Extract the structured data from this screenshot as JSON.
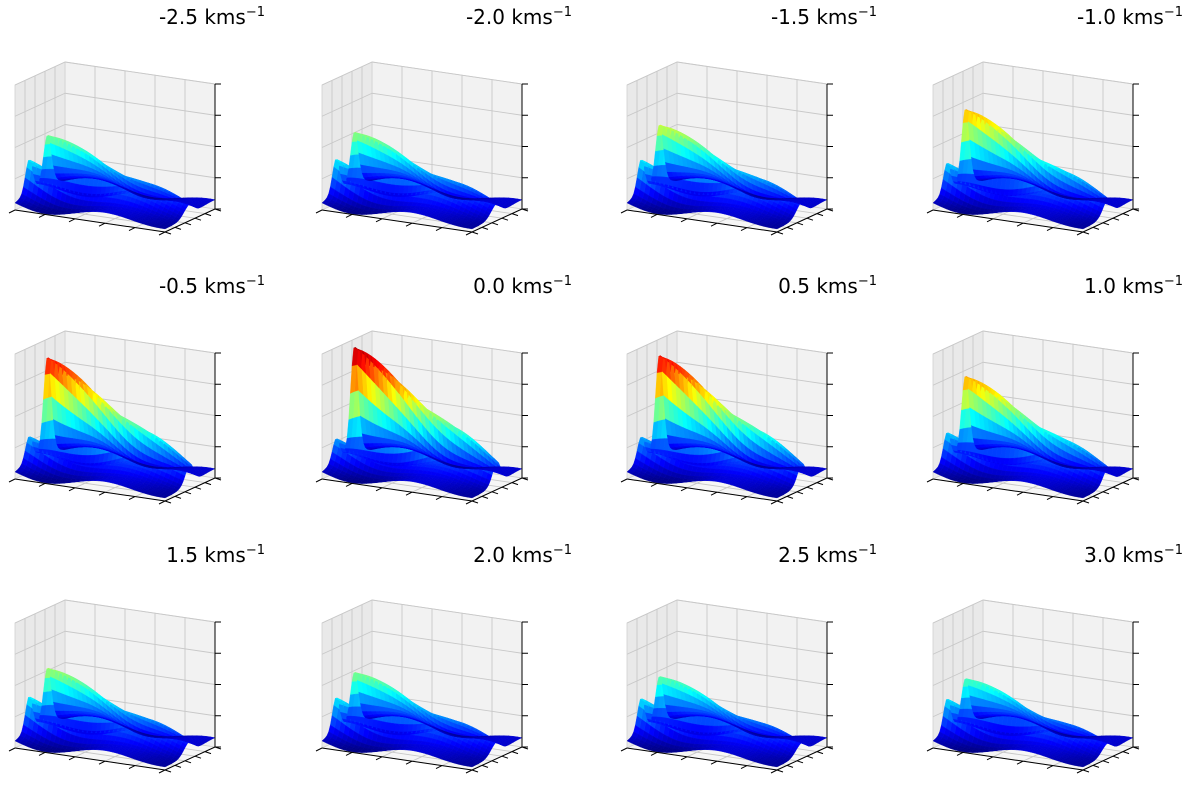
{
  "chart_data": {
    "type": "surface",
    "rows": 3,
    "columns": 4,
    "colormap": "jet",
    "grid": true,
    "tick_labels": false,
    "panels": [
      {
        "title": "-2.5",
        "unit": "kms",
        "unit_exponent": "−1",
        "relative_peak": 0.45
      },
      {
        "title": "-2.0",
        "unit": "kms",
        "unit_exponent": "−1",
        "relative_peak": 0.48
      },
      {
        "title": "-1.5",
        "unit": "kms",
        "unit_exponent": "−1",
        "relative_peak": 0.55
      },
      {
        "title": "-1.0",
        "unit": "kms",
        "unit_exponent": "−1",
        "relative_peak": 0.7
      },
      {
        "title": "-0.5",
        "unit": "kms",
        "unit_exponent": "−1",
        "relative_peak": 0.9
      },
      {
        "title": "0.0",
        "unit": "kms",
        "unit_exponent": "−1",
        "relative_peak": 1.0
      },
      {
        "title": "0.5",
        "unit": "kms",
        "unit_exponent": "−1",
        "relative_peak": 0.92
      },
      {
        "title": "1.0",
        "unit": "kms",
        "unit_exponent": "−1",
        "relative_peak": 0.72
      },
      {
        "title": "1.5",
        "unit": "kms",
        "unit_exponent": "−1",
        "relative_peak": 0.5
      },
      {
        "title": "2.0",
        "unit": "kms",
        "unit_exponent": "−1",
        "relative_peak": 0.46
      },
      {
        "title": "2.5",
        "unit": "kms",
        "unit_exponent": "−1",
        "relative_peak": 0.42
      },
      {
        "title": "3.0",
        "unit": "kms",
        "unit_exponent": "−1",
        "relative_peak": 0.4
      }
    ]
  }
}
